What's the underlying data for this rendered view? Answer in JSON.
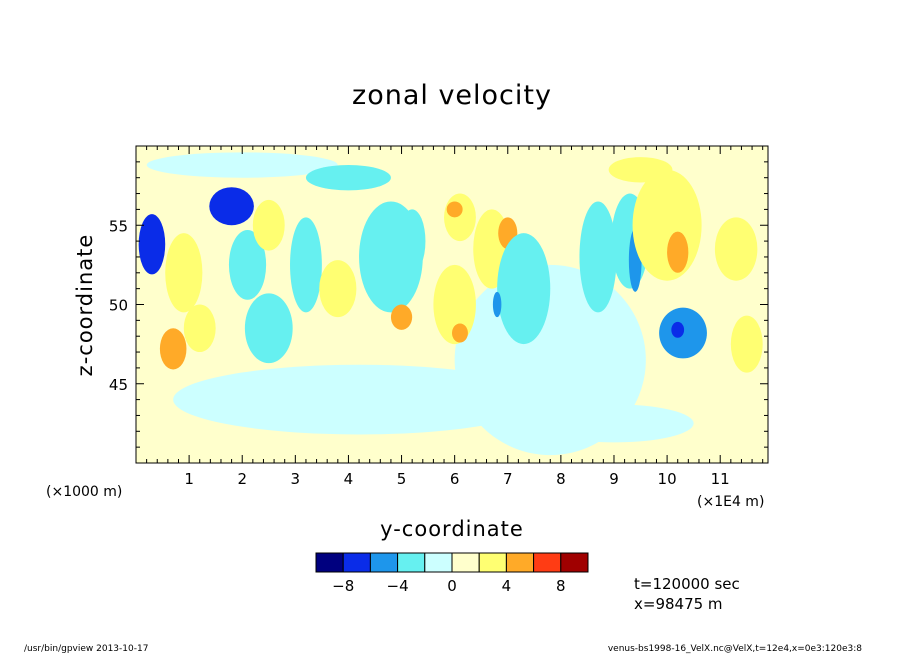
{
  "chart_data": {
    "type": "heatmap",
    "title": "zonal velocity",
    "xlabel": "y-coordinate",
    "ylabel": "z-coordinate",
    "x_unit_left": "(×1000 m)",
    "x_unit_right": "(×1E4 m)",
    "xlim": [
      0,
      11.9
    ],
    "ylim": [
      40,
      60
    ],
    "x_ticks": [
      "1",
      "2",
      "3",
      "4",
      "5",
      "6",
      "7",
      "8",
      "9",
      "10",
      "11"
    ],
    "y_ticks": [
      "45",
      "50",
      "55"
    ],
    "colorbar": {
      "levels": [
        -10,
        -8,
        -6,
        -4,
        -2,
        0,
        2,
        4,
        6,
        8,
        10
      ],
      "colors": [
        "#00007f",
        "#0a2ce8",
        "#1e96eb",
        "#66f0f0",
        "#ccffff",
        "#ffffcc",
        "#ffff72",
        "#ffaa28",
        "#ff3c14",
        "#a00000"
      ],
      "tick_labels": [
        "−8",
        "−4",
        "0",
        "4",
        "8"
      ]
    },
    "blobs": [
      {
        "x": 0.3,
        "y": 53.8,
        "rx": 0.25,
        "ry": 1.9,
        "v": -7
      },
      {
        "x": 1.8,
        "y": 56.2,
        "rx": 0.42,
        "ry": 1.2,
        "v": -6.5
      },
      {
        "x": 2.1,
        "y": 52.5,
        "rx": 0.35,
        "ry": 2.2,
        "v": -2.6
      },
      {
        "x": 0.9,
        "y": 52.0,
        "rx": 0.35,
        "ry": 2.5,
        "v": 2.6
      },
      {
        "x": 0.7,
        "y": 47.2,
        "rx": 0.25,
        "ry": 1.3,
        "v": 4.6
      },
      {
        "x": 1.2,
        "y": 48.5,
        "rx": 0.3,
        "ry": 1.5,
        "v": 2.6
      },
      {
        "x": 2.5,
        "y": 48.5,
        "rx": 0.45,
        "ry": 2.2,
        "v": -2.6
      },
      {
        "x": 2.5,
        "y": 55.0,
        "rx": 0.3,
        "ry": 1.6,
        "v": 2.6
      },
      {
        "x": 3.2,
        "y": 52.5,
        "rx": 0.3,
        "ry": 3.0,
        "v": -2.6
      },
      {
        "x": 3.8,
        "y": 51.0,
        "rx": 0.35,
        "ry": 1.8,
        "v": 2.6
      },
      {
        "x": 4.8,
        "y": 53.0,
        "rx": 0.6,
        "ry": 3.5,
        "v": -2.6
      },
      {
        "x": 5.0,
        "y": 49.2,
        "rx": 0.2,
        "ry": 0.8,
        "v": 4.6
      },
      {
        "x": 5.2,
        "y": 54.0,
        "rx": 0.25,
        "ry": 2.0,
        "v": -2.6
      },
      {
        "x": 6.1,
        "y": 55.5,
        "rx": 0.3,
        "ry": 1.5,
        "v": 2.6
      },
      {
        "x": 6.0,
        "y": 56.0,
        "rx": 0.15,
        "ry": 0.5,
        "v": 4.6
      },
      {
        "x": 6.0,
        "y": 50.0,
        "rx": 0.4,
        "ry": 2.5,
        "v": 2.6
      },
      {
        "x": 6.1,
        "y": 48.2,
        "rx": 0.15,
        "ry": 0.6,
        "v": 4.6
      },
      {
        "x": 6.7,
        "y": 53.5,
        "rx": 0.35,
        "ry": 2.5,
        "v": 2.6
      },
      {
        "x": 7.0,
        "y": 54.5,
        "rx": 0.18,
        "ry": 1.0,
        "v": 4.6
      },
      {
        "x": 7.3,
        "y": 51.0,
        "rx": 0.5,
        "ry": 3.5,
        "v": -2.6
      },
      {
        "x": 6.8,
        "y": 50.0,
        "rx": 0.08,
        "ry": 0.8,
        "v": -4.6
      },
      {
        "x": 8.7,
        "y": 53.0,
        "rx": 0.35,
        "ry": 3.5,
        "v": -2.6
      },
      {
        "x": 9.3,
        "y": 54.0,
        "rx": 0.35,
        "ry": 3.0,
        "v": -2.6
      },
      {
        "x": 9.4,
        "y": 52.8,
        "rx": 0.12,
        "ry": 2.0,
        "v": -4.6
      },
      {
        "x": 10.0,
        "y": 55.0,
        "rx": 0.65,
        "ry": 3.5,
        "v": 2.6
      },
      {
        "x": 10.2,
        "y": 53.3,
        "rx": 0.2,
        "ry": 1.3,
        "v": 4.6
      },
      {
        "x": 10.3,
        "y": 48.2,
        "rx": 0.45,
        "ry": 1.6,
        "v": -4.6
      },
      {
        "x": 10.2,
        "y": 48.4,
        "rx": 0.12,
        "ry": 0.5,
        "v": -6.5
      },
      {
        "x": 11.3,
        "y": 53.5,
        "rx": 0.4,
        "ry": 2.0,
        "v": 2.6
      },
      {
        "x": 11.5,
        "y": 47.5,
        "rx": 0.3,
        "ry": 1.8,
        "v": 2.6
      },
      {
        "x": 4.0,
        "y": 58.0,
        "rx": 0.8,
        "ry": 0.8,
        "v": -2.6
      },
      {
        "x": 9.5,
        "y": 58.5,
        "rx": 0.6,
        "ry": 0.8,
        "v": 2.6
      }
    ]
  },
  "annotations": {
    "time": "t=120000 sec",
    "position": "x=98475 m"
  },
  "footer": {
    "left": "/usr/bin/gpview  2013-10-17",
    "right": "venus-bs1998-16_VelX.nc@VelX,t=12e4,x=0e3:120e3:8"
  }
}
